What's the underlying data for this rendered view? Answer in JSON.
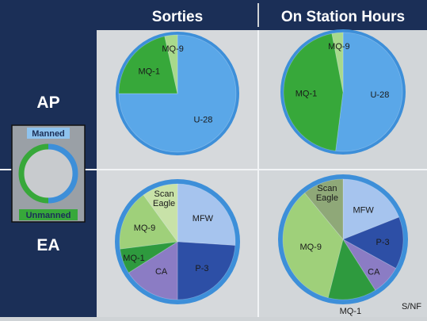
{
  "headers": {
    "col1": "Sorties",
    "col2": "On Station Hours"
  },
  "rows": {
    "ap": "AP",
    "ea": "EA"
  },
  "legend": {
    "manned": "Manned",
    "unmanned": "Unmanned"
  },
  "marking": "S/NF",
  "colors": {
    "navy": "#1b2f57",
    "blue_ring": "#3d8fd9",
    "manned": "#5aa7e8",
    "unmanned_green": "#37a83a",
    "dark_green": "#2e9a3e",
    "light_green": "#9fd07a",
    "very_light_green": "#c8e2a8",
    "light_blue": "#a6c4ee",
    "navy_blue": "#2d4fa6",
    "purple": "#8b7cc4",
    "gray_green": "#8fa878"
  },
  "chart_data": [
    {
      "type": "pie",
      "title": "Sorties",
      "row": "AP",
      "slices": [
        {
          "label": "U-28",
          "value": 75,
          "color": "#5aa7e8"
        },
        {
          "label": "MQ-1",
          "value": 21.5,
          "color": "#37a83a"
        },
        {
          "label": "MQ-9",
          "value": 3.5,
          "color": "#a8d98c"
        }
      ]
    },
    {
      "type": "pie",
      "title": "On Station Hours",
      "row": "AP",
      "slices": [
        {
          "label": "U-28",
          "value": 52,
          "color": "#5aa7e8"
        },
        {
          "label": "MQ-1",
          "value": 45,
          "color": "#37a83a"
        },
        {
          "label": "MQ-9",
          "value": 3,
          "color": "#a8d98c"
        }
      ]
    },
    {
      "type": "pie",
      "title": "Sorties",
      "row": "EA",
      "slices": [
        {
          "label": "MFW",
          "value": 26,
          "color": "#a6c4ee"
        },
        {
          "label": "P-3",
          "value": 24,
          "color": "#2d4fa6"
        },
        {
          "label": "CA",
          "value": 16,
          "color": "#8b7cc4"
        },
        {
          "label": "MQ-1",
          "value": 7,
          "color": "#2e9a3e"
        },
        {
          "label": "MQ-9",
          "value": 17,
          "color": "#9fd07a"
        },
        {
          "label": "Scan Eagle",
          "value": 10,
          "color": "#c8e2a8"
        }
      ]
    },
    {
      "type": "pie",
      "title": "On Station Hours",
      "row": "EA",
      "slices": [
        {
          "label": "MFW",
          "value": 19,
          "color": "#a6c4ee"
        },
        {
          "label": "P-3",
          "value": 14,
          "color": "#2d4fa6"
        },
        {
          "label": "CA",
          "value": 8,
          "color": "#8b7cc4"
        },
        {
          "label": "MQ-1",
          "value": 13,
          "color": "#2e9a3e"
        },
        {
          "label": "MQ-9",
          "value": 35,
          "color": "#9fd07a"
        },
        {
          "label": "Scan Eagle",
          "value": 11,
          "color": "#8fa878"
        }
      ]
    }
  ]
}
